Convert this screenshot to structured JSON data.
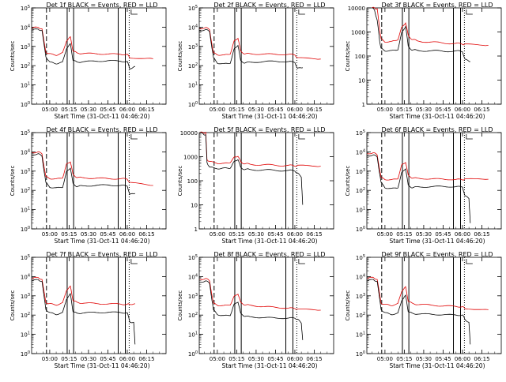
{
  "page": {
    "x_axis_title": "Start Time (31-Oct-11 04:46:20)",
    "y_axis_title": "Counts/sec"
  },
  "colors": {
    "events": "#000000",
    "lld": "#e00000",
    "background": "#ffffff"
  },
  "chart_data": [
    {
      "type": "line",
      "title": "Det 1f  BLACK = Events, RED = LLD",
      "xlabel": "Start Time (31-Oct-11 04:46:20)",
      "ylabel": "Counts/sec",
      "yscale": "log",
      "ylim": [
        1,
        100000
      ],
      "yticks": [
        "10^0",
        "10^1",
        "10^2",
        "10^3",
        "10^4",
        "10^5"
      ],
      "xticks": [
        "05:00",
        "05:15",
        "05:30",
        "05:45",
        "06:00",
        "06:15"
      ],
      "x_tick_minutes": [
        0,
        15,
        30,
        45,
        60,
        75
      ],
      "series": [
        {
          "name": "Events",
          "color": "#000000",
          "x_minutes": [
            -13.7,
            -9,
            -6,
            -3,
            0,
            5,
            10,
            13,
            16,
            18,
            21,
            25,
            35,
            45,
            55,
            60,
            62,
            66
          ],
          "values": [
            7000,
            8000,
            6500,
            300,
            150,
            130,
            150,
            800,
            1300,
            200,
            150,
            160,
            170,
            180,
            170,
            160,
            70,
            90
          ]
        },
        {
          "name": "LLD",
          "color": "#e00000",
          "x_minutes": [
            -13.7,
            -9,
            -6,
            -3,
            0,
            5,
            10,
            13,
            16,
            18,
            21,
            25,
            35,
            45,
            55,
            60,
            62,
            80
          ],
          "values": [
            9000,
            10000,
            8000,
            500,
            400,
            360,
            450,
            2000,
            3000,
            600,
            450,
            430,
            420,
            400,
            390,
            380,
            260,
            230
          ]
        }
      ]
    },
    {
      "type": "line",
      "title": "Det 2f  BLACK = Events, RED = LLD",
      "xlabel": "Start Time (31-Oct-11 04:46:20)",
      "ylabel": "Counts/sec",
      "yscale": "log",
      "ylim": [
        1,
        100000
      ],
      "yticks": [
        "10^0",
        "10^1",
        "10^2",
        "10^3",
        "10^4",
        "10^5"
      ],
      "xticks": [
        "05:00",
        "05:15",
        "05:30",
        "05:45",
        "06:00",
        "06:15"
      ],
      "x_tick_minutes": [
        0,
        15,
        30,
        45,
        60,
        75
      ],
      "series": [
        {
          "name": "Events",
          "color": "#000000",
          "x_minutes": [
            -13.7,
            -9,
            -6,
            -3,
            0,
            5,
            10,
            13,
            16,
            18,
            21,
            25,
            35,
            45,
            55,
            60,
            62,
            66
          ],
          "values": [
            6500,
            7500,
            6000,
            250,
            140,
            120,
            140,
            700,
            1200,
            180,
            140,
            150,
            160,
            170,
            160,
            150,
            70,
            80
          ]
        },
        {
          "name": "LLD",
          "color": "#e00000",
          "x_minutes": [
            -13.7,
            -9,
            -6,
            -3,
            0,
            5,
            10,
            13,
            16,
            18,
            21,
            25,
            35,
            45,
            55,
            60,
            62,
            80
          ],
          "values": [
            8500,
            9500,
            7500,
            450,
            380,
            340,
            420,
            1800,
            2800,
            550,
            420,
            410,
            400,
            390,
            380,
            370,
            250,
            220
          ]
        }
      ]
    },
    {
      "type": "line",
      "title": "Det 3f  BLACK = Events, RED = LLD",
      "xlabel": "Start Time (31-Oct-11 04:46:20)",
      "ylabel": "Counts/sec",
      "yscale": "log",
      "ylim": [
        1,
        10000
      ],
      "yticks": [
        "1",
        "10",
        "100",
        "1000",
        "10000"
      ],
      "xticks": [
        "05:00",
        "05:15",
        "05:30",
        "05:45",
        "06:00",
        "06:15"
      ],
      "x_tick_minutes": [
        0,
        15,
        30,
        45,
        60,
        75
      ],
      "series": [
        {
          "name": "Events",
          "color": "#000000",
          "x_minutes": [
            -10,
            -8,
            -6,
            -4,
            -3,
            0,
            5,
            10,
            13,
            16,
            18,
            21,
            25,
            35,
            45,
            55,
            60,
            62,
            66
          ],
          "values": [
            10000,
            8000,
            3000,
            400,
            200,
            170,
            160,
            190,
            900,
            1800,
            250,
            180,
            170,
            165,
            160,
            160,
            155,
            70,
            60
          ]
        },
        {
          "name": "LLD",
          "color": "#e00000",
          "x_minutes": [
            -10,
            -8,
            -6,
            -4,
            -3,
            0,
            5,
            10,
            13,
            16,
            18,
            21,
            25,
            35,
            45,
            55,
            60,
            62,
            80
          ],
          "values": [
            10000,
            10000,
            9000,
            1200,
            500,
            400,
            380,
            500,
            1500,
            2500,
            700,
            500,
            420,
            380,
            350,
            330,
            320,
            300,
            280
          ]
        }
      ]
    },
    {
      "type": "line",
      "title": "Det 4f  BLACK = Events, RED = LLD",
      "xlabel": "Start Time (31-Oct-11 04:46:20)",
      "ylabel": "Counts/sec",
      "yscale": "log",
      "ylim": [
        1,
        100000
      ],
      "yticks": [
        "10^0",
        "10^1",
        "10^2",
        "10^3",
        "10^4",
        "10^5"
      ],
      "xticks": [
        "05:00",
        "05:15",
        "05:30",
        "05:45",
        "06:00",
        "06:15"
      ],
      "x_tick_minutes": [
        0,
        15,
        30,
        45,
        60,
        75
      ],
      "series": [
        {
          "name": "Events",
          "color": "#000000",
          "x_minutes": [
            -13.7,
            -9,
            -6,
            -3,
            0,
            5,
            10,
            13,
            16,
            18,
            21,
            25,
            35,
            45,
            55,
            60,
            62,
            66
          ],
          "values": [
            7000,
            8000,
            6000,
            250,
            150,
            130,
            150,
            900,
            1500,
            220,
            160,
            170,
            180,
            190,
            180,
            170,
            60,
            70
          ]
        },
        {
          "name": "LLD",
          "color": "#e00000",
          "x_minutes": [
            -13.7,
            -9,
            -6,
            -3,
            0,
            5,
            10,
            13,
            16,
            18,
            21,
            25,
            35,
            45,
            55,
            60,
            62,
            80
          ],
          "values": [
            9000,
            10000,
            8000,
            500,
            420,
            380,
            460,
            2200,
            3200,
            650,
            480,
            450,
            430,
            410,
            400,
            390,
            250,
            180
          ]
        }
      ]
    },
    {
      "type": "line",
      "title": "Det 5f  BLACK = Events, RED = LLD",
      "xlabel": "Start Time (31-Oct-11 04:46:20)",
      "ylabel": "Counts/sec",
      "yscale": "log",
      "ylim": [
        1,
        10000
      ],
      "yticks": [
        "1",
        "10",
        "100",
        "1000",
        "10000"
      ],
      "xticks": [
        "05:00",
        "05:15",
        "05:30",
        "05:45",
        "06:00",
        "06:15"
      ],
      "x_tick_minutes": [
        0,
        15,
        30,
        45,
        60,
        75
      ],
      "series": [
        {
          "name": "Events",
          "color": "#000000",
          "x_minutes": [
            -13.7,
            -11,
            -9,
            -8,
            -6,
            0,
            5,
            10,
            13,
            16,
            18,
            21,
            25,
            35,
            45,
            55,
            60,
            62,
            65,
            66
          ],
          "values": [
            10000,
            9000,
            8000,
            600,
            350,
            330,
            320,
            350,
            600,
            800,
            350,
            300,
            290,
            280,
            270,
            265,
            260,
            200,
            150,
            10
          ]
        },
        {
          "name": "LLD",
          "color": "#e00000",
          "x_minutes": [
            -13.7,
            -11,
            -9,
            -8,
            -6,
            0,
            5,
            10,
            13,
            16,
            18,
            21,
            25,
            35,
            45,
            55,
            60,
            62,
            80
          ],
          "values": [
            10000,
            10000,
            10000,
            800,
            600,
            550,
            500,
            600,
            900,
            1100,
            600,
            520,
            480,
            460,
            440,
            430,
            420,
            420,
            400
          ]
        }
      ]
    },
    {
      "type": "line",
      "title": "Det 6f  BLACK = Events, RED = LLD",
      "xlabel": "Start Time (31-Oct-11 04:46:20)",
      "ylabel": "Counts/sec",
      "yscale": "log",
      "ylim": [
        1,
        100000
      ],
      "yticks": [
        "10^0",
        "10^1",
        "10^2",
        "10^3",
        "10^4",
        "10^5"
      ],
      "xticks": [
        "05:00",
        "05:15",
        "05:30",
        "05:45",
        "06:00",
        "06:15"
      ],
      "x_tick_minutes": [
        0,
        15,
        30,
        45,
        60,
        75
      ],
      "series": [
        {
          "name": "Events",
          "color": "#000000",
          "x_minutes": [
            -13.7,
            -9,
            -6,
            -3,
            0,
            5,
            10,
            13,
            16,
            18,
            21,
            25,
            35,
            45,
            55,
            60,
            62,
            65,
            66
          ],
          "values": [
            6000,
            7000,
            5500,
            250,
            140,
            120,
            140,
            800,
            1400,
            180,
            140,
            150,
            155,
            160,
            155,
            150,
            50,
            40,
            2
          ]
        },
        {
          "name": "LLD",
          "color": "#e00000",
          "x_minutes": [
            -13.7,
            -9,
            -6,
            -3,
            0,
            5,
            10,
            13,
            16,
            18,
            21,
            25,
            35,
            45,
            55,
            60,
            62,
            80
          ],
          "values": [
            8000,
            9000,
            7000,
            450,
            380,
            340,
            420,
            2000,
            3000,
            600,
            450,
            420,
            400,
            380,
            370,
            360,
            380,
            380
          ]
        }
      ]
    },
    {
      "type": "line",
      "title": "Det 7f  BLACK = Events, RED = LLD",
      "xlabel": "Start Time (31-Oct-11 04:46:20)",
      "ylabel": "Counts/sec",
      "yscale": "log",
      "ylim": [
        1,
        100000
      ],
      "yticks": [
        "10^0",
        "10^1",
        "10^2",
        "10^3",
        "10^4",
        "10^5"
      ],
      "xticks": [
        "05:00",
        "05:15",
        "05:30",
        "05:45",
        "06:00",
        "06:15"
      ],
      "x_tick_minutes": [
        0,
        15,
        30,
        45,
        60,
        75
      ],
      "series": [
        {
          "name": "Events",
          "color": "#000000",
          "x_minutes": [
            -13.7,
            -9,
            -6,
            -3,
            0,
            5,
            10,
            13,
            16,
            18,
            21,
            25,
            35,
            45,
            55,
            60,
            62,
            65,
            66
          ],
          "values": [
            6000,
            7000,
            5500,
            200,
            130,
            110,
            130,
            700,
            1200,
            160,
            120,
            130,
            135,
            140,
            135,
            130,
            45,
            40,
            3
          ]
        },
        {
          "name": "LLD",
          "color": "#e00000",
          "x_minutes": [
            -13.7,
            -9,
            -6,
            -3,
            0,
            5,
            10,
            13,
            16,
            18,
            21,
            25,
            35,
            45,
            55,
            60,
            62,
            66
          ],
          "values": [
            8000,
            9000,
            7000,
            450,
            380,
            340,
            420,
            2000,
            3000,
            600,
            450,
            420,
            400,
            380,
            370,
            360,
            370,
            380
          ]
        }
      ]
    },
    {
      "type": "line",
      "title": "Det 8f  BLACK = Events, RED = LLD",
      "xlabel": "Start Time (31-Oct-11 04:46:20)",
      "ylabel": "Counts/sec",
      "yscale": "log",
      "ylim": [
        1,
        100000
      ],
      "yticks": [
        "10^0",
        "10^1",
        "10^2",
        "10^3",
        "10^4",
        "10^5"
      ],
      "xticks": [
        "05:00",
        "05:15",
        "05:30",
        "05:45",
        "06:00",
        "06:15"
      ],
      "x_tick_minutes": [
        0,
        15,
        30,
        45,
        60,
        75
      ],
      "series": [
        {
          "name": "Events",
          "color": "#000000",
          "x_minutes": [
            -13.7,
            -9,
            -6,
            -3,
            0,
            5,
            10,
            13,
            16,
            18,
            21,
            25,
            35,
            45,
            55,
            60,
            62,
            65,
            66
          ],
          "values": [
            5000,
            6000,
            4500,
            180,
            110,
            90,
            100,
            350,
            500,
            120,
            90,
            80,
            75,
            70,
            70,
            70,
            60,
            40,
            5
          ]
        },
        {
          "name": "LLD",
          "color": "#e00000",
          "x_minutes": [
            -13.7,
            -9,
            -6,
            -3,
            0,
            5,
            10,
            13,
            16,
            18,
            21,
            25,
            35,
            45,
            55,
            60,
            62,
            80
          ],
          "values": [
            7000,
            8000,
            6000,
            400,
            330,
            300,
            350,
            900,
            1300,
            450,
            350,
            320,
            280,
            250,
            230,
            220,
            200,
            180
          ]
        }
      ]
    },
    {
      "type": "line",
      "title": "Det 9f  BLACK = Events, RED = LLD",
      "xlabel": "Start Time (31-Oct-11 04:46:20)",
      "ylabel": "Counts/sec",
      "yscale": "log",
      "ylim": [
        1,
        100000
      ],
      "yticks": [
        "10^0",
        "10^1",
        "10^2",
        "10^3",
        "10^4",
        "10^5"
      ],
      "xticks": [
        "05:00",
        "05:15",
        "05:30",
        "05:45",
        "06:00",
        "06:15"
      ],
      "x_tick_minutes": [
        0,
        15,
        30,
        45,
        60,
        75
      ],
      "series": [
        {
          "name": "Events",
          "color": "#000000",
          "x_minutes": [
            -13.7,
            -9,
            -6,
            -3,
            0,
            5,
            10,
            13,
            16,
            18,
            21,
            25,
            35,
            45,
            55,
            60,
            62,
            65,
            66
          ],
          "values": [
            6000,
            7000,
            5500,
            200,
            130,
            110,
            120,
            600,
            1000,
            160,
            120,
            115,
            110,
            105,
            100,
            100,
            60,
            40,
            3
          ]
        },
        {
          "name": "LLD",
          "color": "#e00000",
          "x_minutes": [
            -13.7,
            -9,
            -6,
            -3,
            0,
            5,
            10,
            13,
            16,
            18,
            21,
            25,
            35,
            45,
            55,
            60,
            62,
            80
          ],
          "values": [
            8000,
            9000,
            7000,
            420,
            350,
            320,
            380,
            1800,
            2800,
            550,
            400,
            360,
            330,
            300,
            280,
            270,
            220,
            190
          ]
        }
      ]
    }
  ]
}
